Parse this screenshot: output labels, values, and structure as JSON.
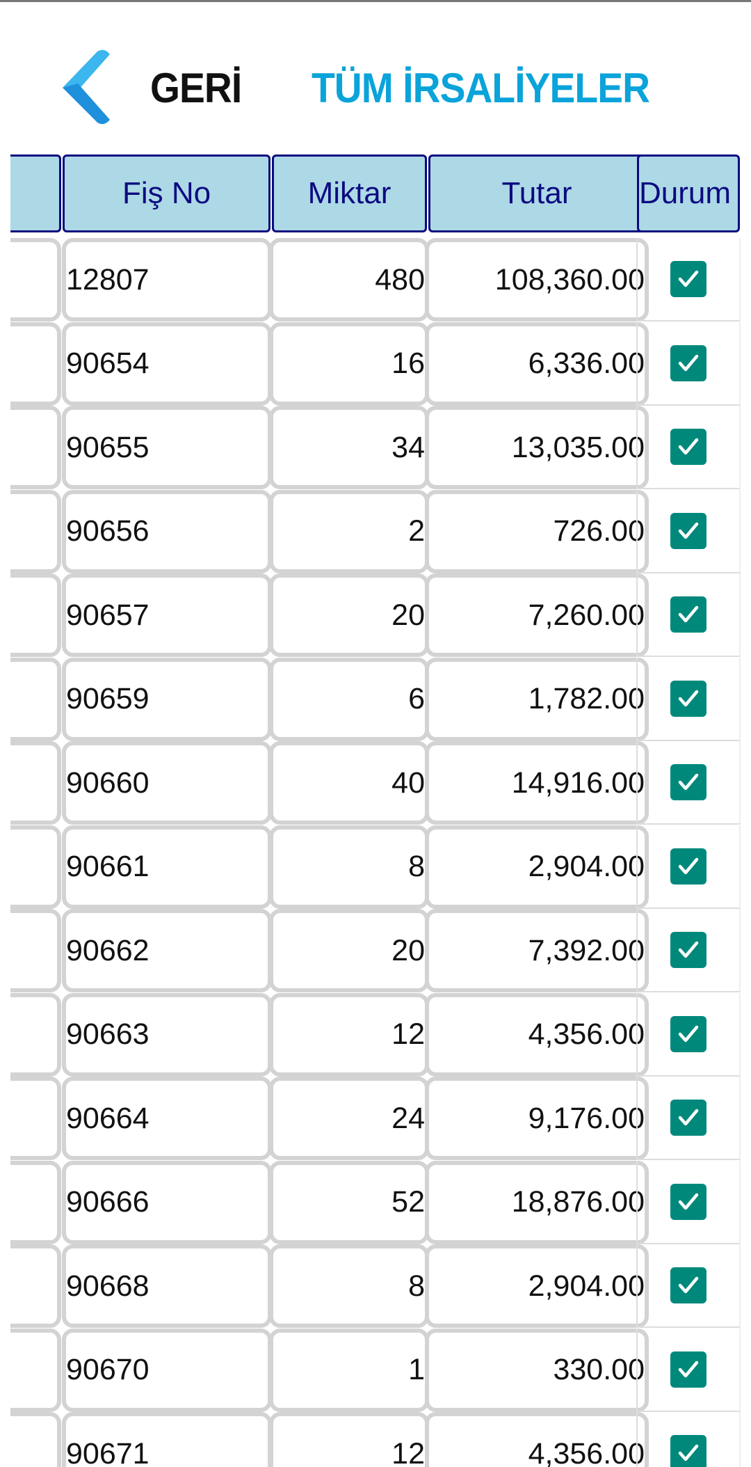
{
  "header": {
    "back_label": "GERİ",
    "title": "TÜM İRSALİYELER"
  },
  "colors": {
    "accent": "#0aa3da",
    "header_bg": "#add8e6",
    "header_border": "#0b0b80",
    "checkbox": "#00897b"
  },
  "table": {
    "columns": [
      "",
      "Fiş No",
      "Miktar",
      "Tutar",
      "Durum"
    ],
    "rows": [
      {
        "fis_no": "12807",
        "miktar": "480",
        "tutar": "108,360.00",
        "durum": true
      },
      {
        "fis_no": "90654",
        "miktar": "16",
        "tutar": "6,336.00",
        "durum": true
      },
      {
        "fis_no": "90655",
        "miktar": "34",
        "tutar": "13,035.00",
        "durum": true
      },
      {
        "fis_no": "90656",
        "miktar": "2",
        "tutar": "726.00",
        "durum": true
      },
      {
        "fis_no": "90657",
        "miktar": "20",
        "tutar": "7,260.00",
        "durum": true
      },
      {
        "fis_no": "90659",
        "miktar": "6",
        "tutar": "1,782.00",
        "durum": true
      },
      {
        "fis_no": "90660",
        "miktar": "40",
        "tutar": "14,916.00",
        "durum": true
      },
      {
        "fis_no": "90661",
        "miktar": "8",
        "tutar": "2,904.00",
        "durum": true
      },
      {
        "fis_no": "90662",
        "miktar": "20",
        "tutar": "7,392.00",
        "durum": true
      },
      {
        "fis_no": "90663",
        "miktar": "12",
        "tutar": "4,356.00",
        "durum": true
      },
      {
        "fis_no": "90664",
        "miktar": "24",
        "tutar": "9,176.00",
        "durum": true
      },
      {
        "fis_no": "90666",
        "miktar": "52",
        "tutar": "18,876.00",
        "durum": true
      },
      {
        "fis_no": "90668",
        "miktar": "8",
        "tutar": "2,904.00",
        "durum": true
      },
      {
        "fis_no": "90670",
        "miktar": "1",
        "tutar": "330.00",
        "durum": true
      },
      {
        "fis_no": "90671",
        "miktar": "12",
        "tutar": "4,356.00",
        "durum": true
      }
    ]
  }
}
